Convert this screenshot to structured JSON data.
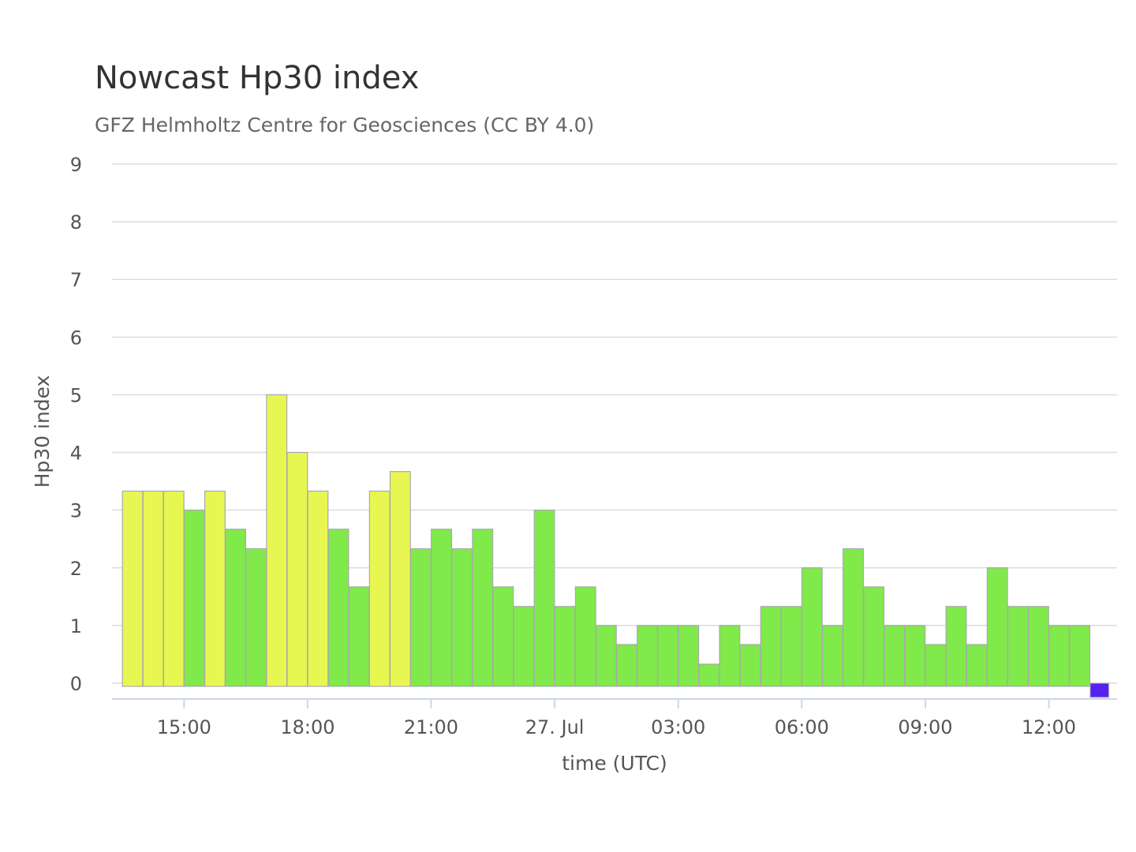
{
  "chart_data": {
    "type": "bar",
    "title": "Nowcast Hp30 index",
    "subtitle": "GFZ Helmholtz Centre for Geosciences (CC BY 4.0)",
    "xlabel": "time (UTC)",
    "ylabel": "Hp30 index",
    "ylim": [
      0,
      9
    ],
    "yticks": [
      "0",
      "1",
      "2",
      "3",
      "4",
      "5",
      "6",
      "7",
      "8",
      "9"
    ],
    "xticks": [
      "15:00",
      "18:00",
      "21:00",
      "27. Jul",
      "03:00",
      "06:00",
      "09:00",
      "12:00"
    ],
    "grid": true,
    "bar_interval": "30 min",
    "colors": {
      "yellow": "#e8f652",
      "green": "#7fea4a",
      "blue": "#5522ee",
      "grid": "#dcdcdc",
      "axis": "#ccd6eb"
    },
    "categories": [
      "13:30",
      "14:00",
      "14:30",
      "15:00",
      "15:30",
      "16:00",
      "16:30",
      "17:00",
      "17:30",
      "18:00",
      "18:30",
      "19:00",
      "19:30",
      "20:00",
      "20:30",
      "21:00",
      "21:30",
      "22:00",
      "22:30",
      "23:00",
      "23:30",
      "00:00",
      "00:30",
      "01:00",
      "01:30",
      "02:00",
      "02:30",
      "03:00",
      "03:30",
      "04:00",
      "04:30",
      "05:00",
      "05:30",
      "06:00",
      "06:30",
      "07:00",
      "07:30",
      "08:00",
      "08:30",
      "09:00",
      "09:30",
      "10:00",
      "10:30",
      "11:00",
      "11:30",
      "12:00",
      "12:30",
      "13:00"
    ],
    "values": [
      3.33,
      3.33,
      3.33,
      3.0,
      3.33,
      2.67,
      2.33,
      5.0,
      4.0,
      3.33,
      2.67,
      1.67,
      3.33,
      3.67,
      2.33,
      2.67,
      2.33,
      2.67,
      1.67,
      1.33,
      3.0,
      1.33,
      1.67,
      1.0,
      0.67,
      1.0,
      1.0,
      1.0,
      0.33,
      1.0,
      0.67,
      1.33,
      1.33,
      2.0,
      1.0,
      2.33,
      1.67,
      1.0,
      1.0,
      0.67,
      1.33,
      0.67,
      2.0,
      1.33,
      1.33,
      1.0,
      1.0,
      0.0
    ],
    "bar_colors": [
      "yellow",
      "yellow",
      "yellow",
      "green",
      "yellow",
      "green",
      "green",
      "yellow",
      "yellow",
      "yellow",
      "green",
      "green",
      "yellow",
      "yellow",
      "green",
      "green",
      "green",
      "green",
      "green",
      "green",
      "green",
      "green",
      "green",
      "green",
      "green",
      "green",
      "green",
      "green",
      "green",
      "green",
      "green",
      "green",
      "green",
      "green",
      "green",
      "green",
      "green",
      "green",
      "green",
      "green",
      "green",
      "green",
      "green",
      "green",
      "green",
      "green",
      "green",
      "blue"
    ]
  }
}
